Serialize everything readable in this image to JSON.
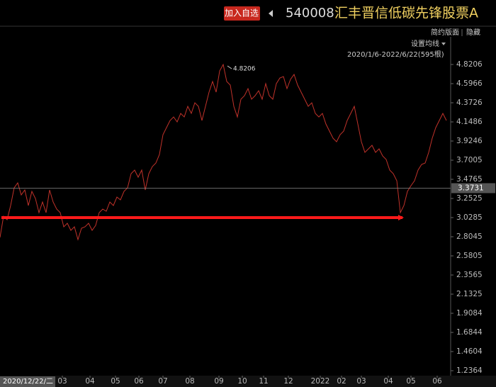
{
  "header": {
    "add_button": "加入自选",
    "code": "540008",
    "name": "汇丰晋信低碳先锋股票A",
    "layout": "简约版面",
    "hide": "隐藏",
    "ma_setting": "设置均线",
    "range": "2020/1/6-2022/6/22(595根)"
  },
  "chart_data": {
    "type": "line",
    "color": "#c0322a",
    "values": [
      2.7964,
      3.0453,
      3.0038,
      3.1697,
      3.3771,
      3.4352,
      3.2941,
      3.3522,
      3.1697,
      3.3356,
      3.2527,
      3.0867,
      3.2112,
      3.0867,
      3.3522,
      3.2112,
      3.1282,
      3.0867,
      2.9208,
      2.9623,
      2.8793,
      2.9208,
      2.7715,
      2.9042,
      2.9208,
      2.9623,
      2.8793,
      2.9374,
      3.0867,
      3.1282,
      3.1033,
      3.2112,
      3.1697,
      3.2692,
      3.2361,
      3.3356,
      3.3771,
      3.543,
      3.5845,
      3.5015,
      3.5845,
      3.3522,
      3.543,
      3.626,
      3.6675,
      3.767,
      3.9993,
      4.0823,
      4.1652,
      4.2067,
      4.1486,
      4.2482,
      4.2067,
      4.3311,
      4.2482,
      4.3726,
      4.3311,
      4.1652,
      4.3311,
      4.4971,
      4.6215,
      4.4971,
      4.7459,
      4.8206,
      4.6215,
      4.58,
      4.3311,
      4.2067,
      4.4141,
      4.4556,
      4.5385,
      4.4141,
      4.4556,
      4.5136,
      4.4141,
      4.5966,
      4.4556,
      4.4141,
      4.5966,
      4.663,
      4.6796,
      4.5385,
      4.6464,
      4.7045,
      4.58,
      4.4971,
      4.4141,
      4.3311,
      4.3726,
      4.2482,
      4.2067,
      4.2482,
      4.1237,
      4.0408,
      3.9578,
      3.9163,
      3.9993,
      4.0408,
      4.1652,
      4.2482,
      4.3311,
      4.1237,
      3.9163,
      3.7919,
      3.8334,
      3.8749,
      3.7919,
      3.8334,
      3.7504,
      3.7089,
      3.5845,
      3.543,
      3.4601,
      3.0867,
      3.1697,
      3.3356,
      3.402,
      3.4601,
      3.5845,
      3.6509,
      3.6675,
      3.7919,
      3.9578,
      4.0823,
      4.1652,
      4.2482,
      4.1652
    ],
    "xlim": [
      0,
      127
    ],
    "xticks": [
      {
        "value": 17.6,
        "label": "03"
      },
      {
        "value": 25.4,
        "label": "04"
      },
      {
        "value": 32.6,
        "label": "05"
      },
      {
        "value": 39.2,
        "label": "06"
      },
      {
        "value": 46,
        "label": "07"
      },
      {
        "value": 53.6,
        "label": "08"
      },
      {
        "value": 61.8,
        "label": "09"
      },
      {
        "value": 68.4,
        "label": "10"
      },
      {
        "value": 74.4,
        "label": "11"
      },
      {
        "value": 81.4,
        "label": "12"
      },
      {
        "value": 90.4,
        "label": "2022"
      },
      {
        "value": 96.4,
        "label": "02"
      },
      {
        "value": 102,
        "label": "03"
      },
      {
        "value": 109.6,
        "label": "04"
      },
      {
        "value": 116,
        "label": "05"
      },
      {
        "value": 123.4,
        "label": "06"
      }
    ],
    "ylim": [
      1.1783,
      5.1442
    ],
    "yticks": [
      4.8206,
      4.5966,
      4.3726,
      4.1486,
      3.9246,
      3.7005,
      3.4765,
      3.2525,
      3.0285,
      2.8045,
      2.5805,
      2.3565,
      2.1325,
      1.9084,
      1.6844,
      1.4604,
      1.2364
    ],
    "max_index": 63,
    "crosshair": {
      "x_label": "2020/12/22/二",
      "value": 3.3731
    },
    "trend_line": {
      "value": 3.0285,
      "color": "#ff1a1a"
    }
  }
}
